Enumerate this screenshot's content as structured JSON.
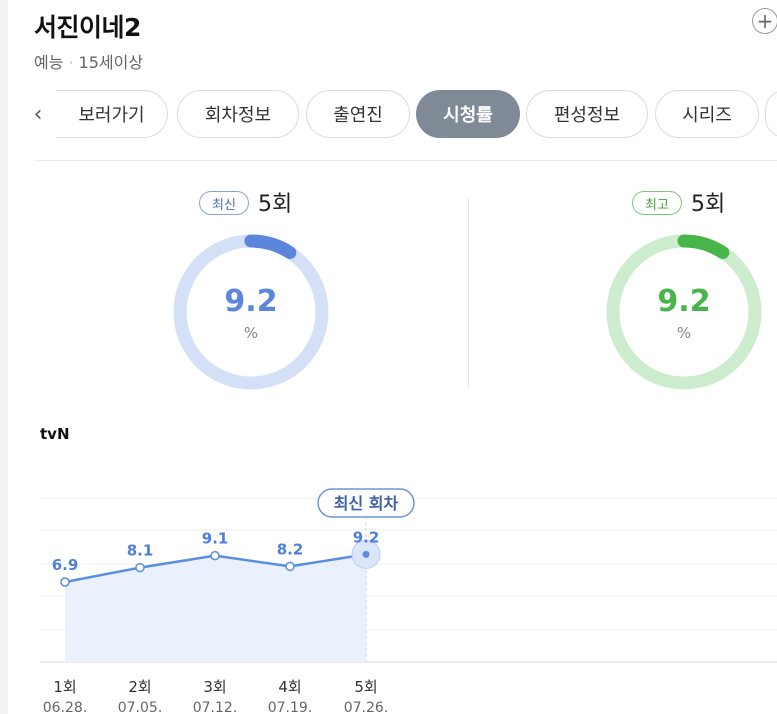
{
  "header": {
    "title": "서진이네2",
    "genre": "예능",
    "rating": "15세이상",
    "add_icon": "plus-circle-icon"
  },
  "tabs": {
    "prev_icon": "chevron-left-icon",
    "items": [
      {
        "label": "보러가기"
      },
      {
        "label": "회차정보"
      },
      {
        "label": "출연진"
      },
      {
        "label": "시청률",
        "active": true
      },
      {
        "label": "편성정보"
      },
      {
        "label": "시리즈"
      }
    ]
  },
  "summary": {
    "latest": {
      "badge": "최신",
      "episode": "5회",
      "value": "9.2",
      "unit": "%",
      "fraction": 0.092,
      "color": "#5b86dc",
      "track_color": "#d4e0f6"
    },
    "highest": {
      "badge": "최고",
      "episode": "5회",
      "value": "9.2",
      "unit": "%",
      "fraction": 0.092,
      "color": "#48b54a",
      "track_color": "#cdeccd"
    }
  },
  "channel": "tvN",
  "chart_data": {
    "type": "line",
    "categories": [
      "1회",
      "2회",
      "3회",
      "4회",
      "5회"
    ],
    "dates": [
      "06.28.",
      "07.05.",
      "07.12.",
      "07.19.",
      "07.26."
    ],
    "values": [
      6.9,
      8.1,
      9.1,
      8.2,
      9.2
    ],
    "annotation": "최신 회차",
    "line_color": "#5b8ee0",
    "fill_color": "#eaf1fd",
    "grid": true
  }
}
